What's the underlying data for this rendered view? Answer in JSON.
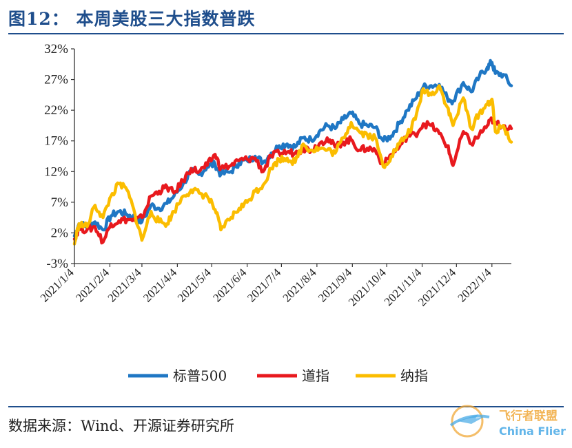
{
  "figure": {
    "title": "图12：  本周美股三大指数普跌",
    "source": "数据来源：Wind、开源证券研究所"
  },
  "watermark": {
    "cn": "飞行者联盟",
    "en": "China Flier"
  },
  "chart_data": {
    "type": "line",
    "title": "",
    "xlabel": "",
    "ylabel": "",
    "ylim": [
      -3,
      32
    ],
    "yticks": [
      -3,
      2,
      7,
      12,
      17,
      22,
      27,
      32
    ],
    "ytick_labels": [
      "-3%",
      "2%",
      "7%",
      "12%",
      "17%",
      "22%",
      "27%",
      "32%"
    ],
    "x_range": [
      "2021-01-04",
      "2022-01-21"
    ],
    "xticks": [
      "2021/1/4",
      "2021/2/4",
      "2021/3/4",
      "2021/4/4",
      "2021/5/4",
      "2021/6/4",
      "2021/7/4",
      "2021/8/4",
      "2021/9/4",
      "2021/10/4",
      "2021/11/4",
      "2021/12/4",
      "2022/1/4"
    ],
    "grid": false,
    "legend_position": "bottom-center",
    "unit": "%",
    "series": [
      {
        "name": "标普500",
        "color": "#1f77c4",
        "points": [
          [
            "2021-01-04",
            1.5
          ],
          [
            "2021-01-08",
            3.5
          ],
          [
            "2021-01-15",
            3.0
          ],
          [
            "2021-01-22",
            3.8
          ],
          [
            "2021-01-29",
            2.5
          ],
          [
            "2021-02-05",
            4.8
          ],
          [
            "2021-02-12",
            5.5
          ],
          [
            "2021-02-19",
            5.0
          ],
          [
            "2021-02-26",
            4.5
          ],
          [
            "2021-03-04",
            3.8
          ],
          [
            "2021-03-12",
            6.5
          ],
          [
            "2021-03-19",
            6.0
          ],
          [
            "2021-03-26",
            6.8
          ],
          [
            "2021-04-01",
            8.0
          ],
          [
            "2021-04-09",
            10.0
          ],
          [
            "2021-04-16",
            12.0
          ],
          [
            "2021-04-23",
            11.5
          ],
          [
            "2021-04-30",
            12.8
          ],
          [
            "2021-05-07",
            13.2
          ],
          [
            "2021-05-12",
            11.5
          ],
          [
            "2021-05-21",
            12.0
          ],
          [
            "2021-05-28",
            13.5
          ],
          [
            "2021-06-04",
            13.8
          ],
          [
            "2021-06-11",
            14.5
          ],
          [
            "2021-06-18",
            13.5
          ],
          [
            "2021-06-25",
            15.0
          ],
          [
            "2021-07-02",
            16.2
          ],
          [
            "2021-07-09",
            16.5
          ],
          [
            "2021-07-16",
            16.0
          ],
          [
            "2021-07-23",
            17.5
          ],
          [
            "2021-07-30",
            17.2
          ],
          [
            "2021-08-06",
            18.5
          ],
          [
            "2021-08-13",
            19.5
          ],
          [
            "2021-08-20",
            19.0
          ],
          [
            "2021-08-27",
            20.5
          ],
          [
            "2021-09-03",
            21.5
          ],
          [
            "2021-09-10",
            19.8
          ],
          [
            "2021-09-17",
            19.5
          ],
          [
            "2021-09-24",
            19.2
          ],
          [
            "2021-10-01",
            17.0
          ],
          [
            "2021-10-08",
            17.8
          ],
          [
            "2021-10-15",
            19.8
          ],
          [
            "2021-10-22",
            22.0
          ],
          [
            "2021-10-29",
            23.8
          ],
          [
            "2021-11-05",
            25.8
          ],
          [
            "2021-11-12",
            26.0
          ],
          [
            "2021-11-19",
            26.2
          ],
          [
            "2021-11-26",
            24.0
          ],
          [
            "2021-12-01",
            23.5
          ],
          [
            "2021-12-10",
            26.5
          ],
          [
            "2021-12-17",
            25.0
          ],
          [
            "2021-12-24",
            27.5
          ],
          [
            "2021-12-31",
            29.0
          ],
          [
            "2022-01-04",
            29.8
          ],
          [
            "2022-01-07",
            28.0
          ],
          [
            "2022-01-14",
            27.8
          ],
          [
            "2022-01-21",
            26.0
          ]
        ]
      },
      {
        "name": "道指",
        "color": "#e8191e",
        "points": [
          [
            "2021-01-04",
            1.0
          ],
          [
            "2021-01-08",
            2.8
          ],
          [
            "2021-01-15",
            2.5
          ],
          [
            "2021-01-22",
            3.0
          ],
          [
            "2021-01-29",
            0.5
          ],
          [
            "2021-02-05",
            3.5
          ],
          [
            "2021-02-12",
            4.0
          ],
          [
            "2021-02-19",
            4.2
          ],
          [
            "2021-02-26",
            4.0
          ],
          [
            "2021-03-04",
            4.5
          ],
          [
            "2021-03-12",
            8.0
          ],
          [
            "2021-03-19",
            8.8
          ],
          [
            "2021-03-26",
            9.5
          ],
          [
            "2021-04-01",
            8.5
          ],
          [
            "2021-04-09",
            10.5
          ],
          [
            "2021-04-16",
            12.5
          ],
          [
            "2021-04-23",
            12.0
          ],
          [
            "2021-04-30",
            13.0
          ],
          [
            "2021-05-07",
            14.8
          ],
          [
            "2021-05-12",
            12.5
          ],
          [
            "2021-05-21",
            13.0
          ],
          [
            "2021-05-28",
            13.8
          ],
          [
            "2021-06-04",
            14.0
          ],
          [
            "2021-06-11",
            14.2
          ],
          [
            "2021-06-18",
            12.0
          ],
          [
            "2021-06-25",
            14.5
          ],
          [
            "2021-07-02",
            15.0
          ],
          [
            "2021-07-09",
            15.2
          ],
          [
            "2021-07-16",
            15.0
          ],
          [
            "2021-07-23",
            15.8
          ],
          [
            "2021-07-30",
            15.5
          ],
          [
            "2021-08-06",
            16.5
          ],
          [
            "2021-08-13",
            17.5
          ],
          [
            "2021-08-20",
            16.0
          ],
          [
            "2021-08-27",
            16.8
          ],
          [
            "2021-09-03",
            17.2
          ],
          [
            "2021-09-10",
            15.5
          ],
          [
            "2021-09-17",
            15.8
          ],
          [
            "2021-09-24",
            15.5
          ],
          [
            "2021-10-01",
            13.0
          ],
          [
            "2021-10-08",
            14.8
          ],
          [
            "2021-10-15",
            16.0
          ],
          [
            "2021-10-22",
            17.8
          ],
          [
            "2021-10-29",
            18.0
          ],
          [
            "2021-11-05",
            19.8
          ],
          [
            "2021-11-12",
            19.5
          ],
          [
            "2021-11-19",
            18.2
          ],
          [
            "2021-11-26",
            16.2
          ],
          [
            "2021-12-01",
            13.0
          ],
          [
            "2021-12-10",
            18.5
          ],
          [
            "2021-12-17",
            16.5
          ],
          [
            "2021-12-24",
            18.0
          ],
          [
            "2021-12-31",
            19.5
          ],
          [
            "2022-01-04",
            20.5
          ],
          [
            "2022-01-07",
            19.8
          ],
          [
            "2022-01-14",
            19.5
          ],
          [
            "2022-01-21",
            19.0
          ]
        ]
      },
      {
        "name": "纳指",
        "color": "#fbbd00",
        "points": [
          [
            "2021-01-04",
            0.2
          ],
          [
            "2021-01-08",
            3.5
          ],
          [
            "2021-01-15",
            3.0
          ],
          [
            "2021-01-22",
            6.5
          ],
          [
            "2021-01-29",
            4.5
          ],
          [
            "2021-02-05",
            8.0
          ],
          [
            "2021-02-12",
            10.0
          ],
          [
            "2021-02-19",
            9.0
          ],
          [
            "2021-02-26",
            5.0
          ],
          [
            "2021-03-04",
            0.8
          ],
          [
            "2021-03-12",
            5.5
          ],
          [
            "2021-03-19",
            3.8
          ],
          [
            "2021-03-26",
            3.5
          ],
          [
            "2021-04-01",
            5.5
          ],
          [
            "2021-04-09",
            8.0
          ],
          [
            "2021-04-16",
            9.0
          ],
          [
            "2021-04-23",
            8.5
          ],
          [
            "2021-04-30",
            8.0
          ],
          [
            "2021-05-07",
            5.8
          ],
          [
            "2021-05-12",
            2.5
          ],
          [
            "2021-05-21",
            4.5
          ],
          [
            "2021-05-28",
            6.0
          ],
          [
            "2021-06-04",
            7.0
          ],
          [
            "2021-06-11",
            8.8
          ],
          [
            "2021-06-18",
            9.8
          ],
          [
            "2021-06-25",
            12.5
          ],
          [
            "2021-07-02",
            14.0
          ],
          [
            "2021-07-09",
            14.2
          ],
          [
            "2021-07-16",
            13.5
          ],
          [
            "2021-07-23",
            16.5
          ],
          [
            "2021-07-30",
            15.5
          ],
          [
            "2021-08-06",
            15.8
          ],
          [
            "2021-08-13",
            15.5
          ],
          [
            "2021-08-20",
            15.0
          ],
          [
            "2021-08-27",
            17.5
          ],
          [
            "2021-09-03",
            20.0
          ],
          [
            "2021-09-10",
            18.5
          ],
          [
            "2021-09-17",
            18.0
          ],
          [
            "2021-09-24",
            17.5
          ],
          [
            "2021-10-01",
            12.8
          ],
          [
            "2021-10-08",
            14.5
          ],
          [
            "2021-10-15",
            16.5
          ],
          [
            "2021-10-22",
            18.0
          ],
          [
            "2021-10-29",
            20.5
          ],
          [
            "2021-11-05",
            25.5
          ],
          [
            "2021-11-12",
            24.5
          ],
          [
            "2021-11-19",
            26.0
          ],
          [
            "2021-11-26",
            22.5
          ],
          [
            "2021-12-01",
            19.5
          ],
          [
            "2021-12-10",
            24.0
          ],
          [
            "2021-12-17",
            19.0
          ],
          [
            "2021-12-24",
            21.5
          ],
          [
            "2021-12-31",
            23.0
          ],
          [
            "2022-01-04",
            23.8
          ],
          [
            "2022-01-07",
            18.5
          ],
          [
            "2022-01-14",
            19.5
          ],
          [
            "2022-01-21",
            16.8
          ]
        ]
      }
    ]
  }
}
